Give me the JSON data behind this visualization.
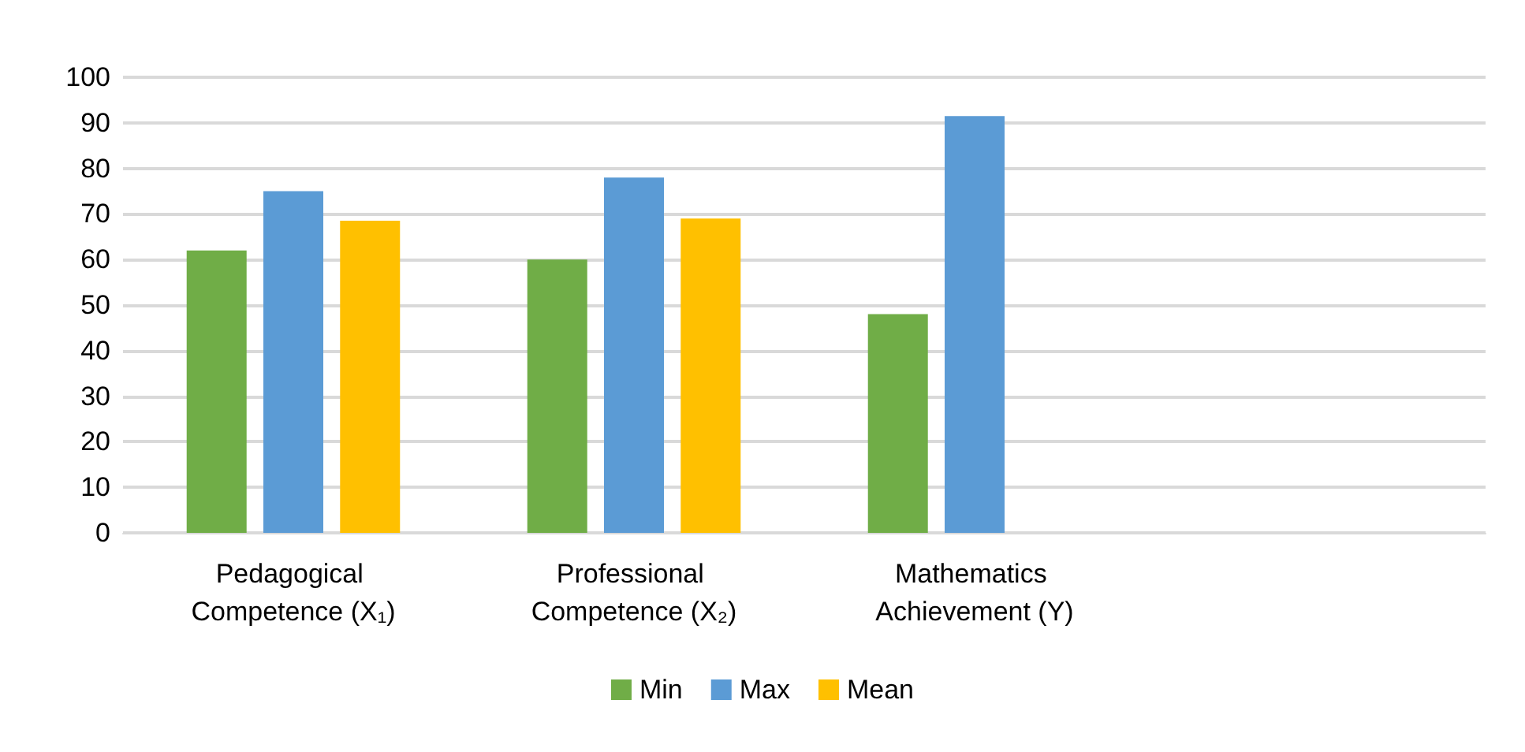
{
  "chart_data": {
    "type": "bar",
    "categories": [
      "Pedagogical Competence (X₁)",
      "Professional Competence (X₂)",
      "Mathematics Achievement (Y)",
      null
    ],
    "series": [
      {
        "name": "Min",
        "color": "#70ad47",
        "values": [
          62,
          60,
          48,
          null
        ]
      },
      {
        "name": "Max",
        "color": "#5b9bd5",
        "values": [
          75,
          78,
          91.5,
          null
        ]
      },
      {
        "name": "Mean",
        "color": "#ffc000",
        "values": [
          68.5,
          69,
          null,
          null
        ]
      }
    ],
    "ylim": [
      0,
      100
    ],
    "yticks": [
      0,
      10,
      20,
      30,
      40,
      50,
      60,
      70,
      80,
      90,
      100
    ],
    "grid": "y",
    "legend": "bottom"
  }
}
